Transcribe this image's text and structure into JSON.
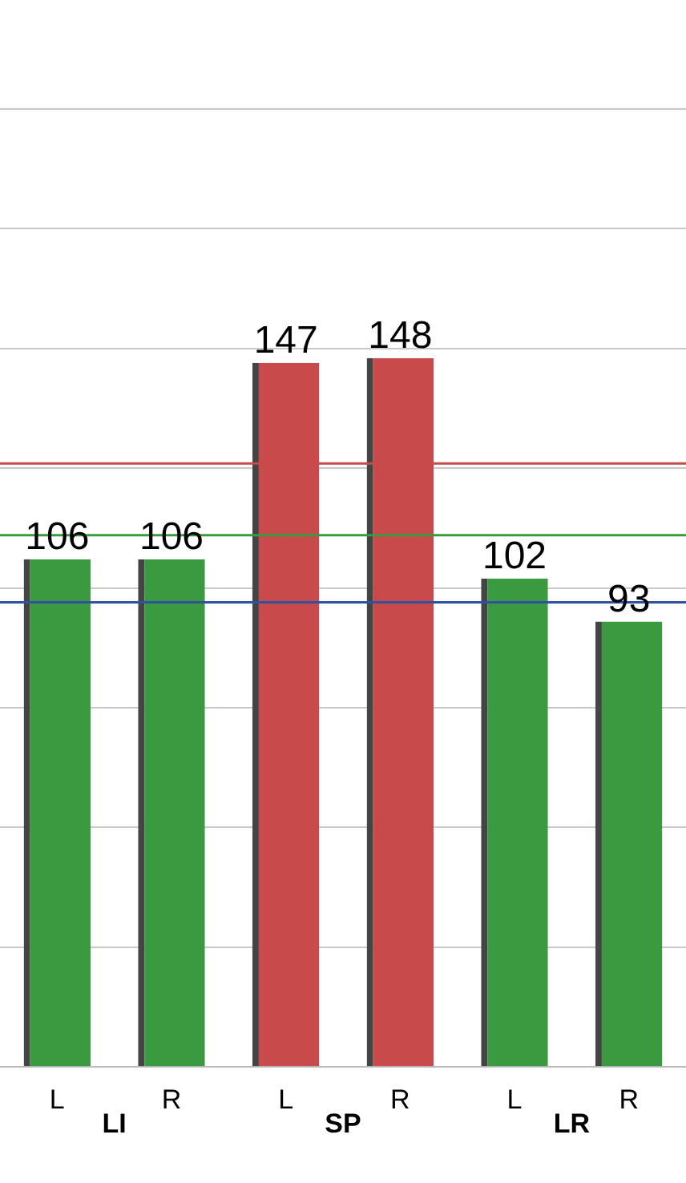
{
  "chart_data": {
    "type": "bar",
    "categories": [
      "L",
      "R",
      "L",
      "R",
      "L",
      "R"
    ],
    "values": [
      106,
      106,
      147,
      148,
      102,
      93
    ],
    "colors": [
      "#3a9a40",
      "#3a9a40",
      "#c84a4a",
      "#c84a4a",
      "#3a9a40",
      "#3a9a40"
    ],
    "data_labels": true,
    "annotations": [
      "LI",
      "SP",
      "LR"
    ],
    "ylim": [
      0,
      200
    ],
    "yticks": [
      {
        "value": 0,
        "label": null
      },
      {
        "value": 25,
        "label": null
      },
      {
        "value": 50,
        "label": null
      },
      {
        "value": 75,
        "label": null
      },
      {
        "value": 100,
        "label": null
      },
      {
        "value": 125,
        "label": null
      },
      {
        "value": 150,
        "label": null
      },
      {
        "value": 175,
        "label": null
      },
      {
        "value": 200,
        "label": null
      }
    ],
    "tick_labels": "x",
    "grid": "y",
    "legend": false,
    "ref_lines": [
      {
        "axis": "y",
        "value": 126,
        "color": "#c84a4a"
      },
      {
        "axis": "y",
        "value": 111,
        "color": "#3a9a40"
      },
      {
        "axis": "y",
        "value": 97,
        "color": "#3050a0"
      }
    ]
  }
}
